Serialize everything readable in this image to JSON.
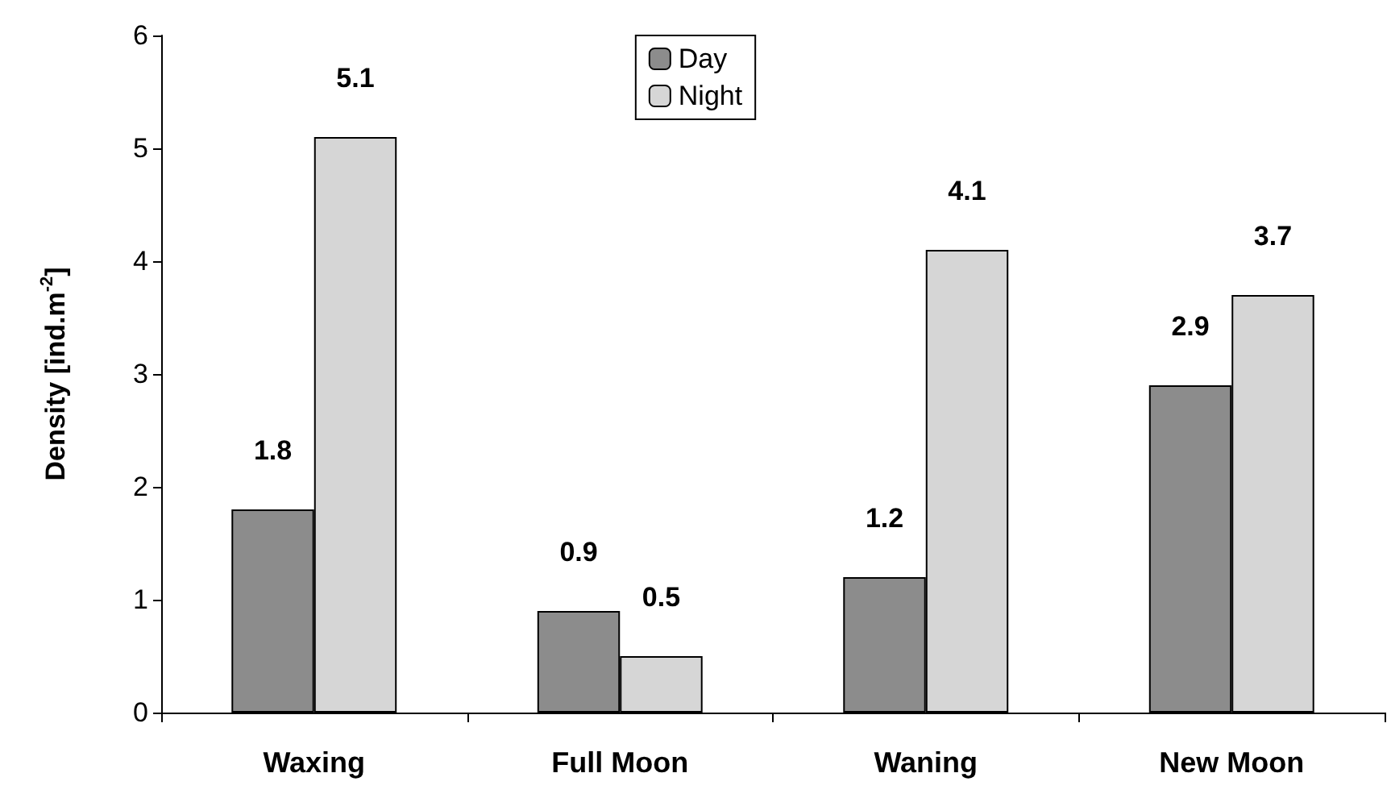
{
  "chart_data": {
    "type": "bar",
    "ylabel": "Density [ind.m$^{-2}$]",
    "categories": [
      "Waxing",
      "Full Moon",
      "Waning",
      "New Moon"
    ],
    "series": [
      {
        "name": "Day",
        "color": "#8c8c8c",
        "values": [
          1.8,
          0.9,
          1.2,
          2.9
        ]
      },
      {
        "name": "Night",
        "color": "#d6d6d6",
        "values": [
          5.1,
          0.5,
          4.1,
          3.7
        ]
      }
    ],
    "ylim": [
      0,
      6
    ],
    "yticks": [
      0,
      1,
      2,
      3,
      4,
      5,
      6
    ],
    "grid": false,
    "legend": "top",
    "data_labels": true
  }
}
